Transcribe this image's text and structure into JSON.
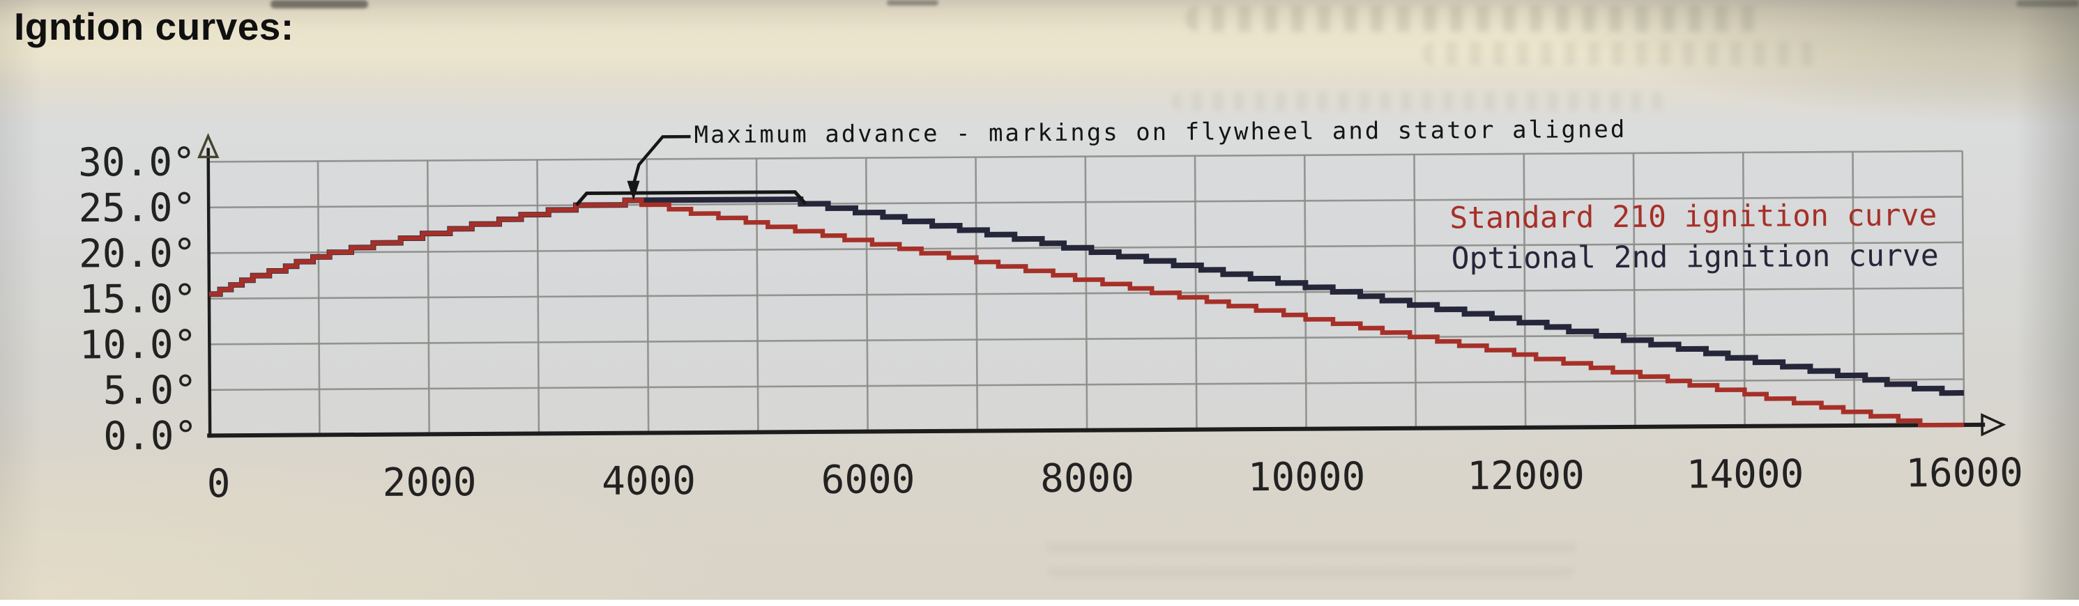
{
  "page": {
    "title": "Igntion curves:"
  },
  "chart_data": {
    "type": "line",
    "title": "Igntion curves",
    "xlabel": "",
    "ylabel": "",
    "xlim": [
      0,
      16000
    ],
    "ylim": [
      0,
      30
    ],
    "grid": true,
    "x_gridline_step": 1000,
    "y_gridline_step": 5,
    "x_ticks": [
      {
        "v": 0,
        "label": "0"
      },
      {
        "v": 2000,
        "label": "2000"
      },
      {
        "v": 4000,
        "label": "4000"
      },
      {
        "v": 6000,
        "label": "6000"
      },
      {
        "v": 8000,
        "label": "8000"
      },
      {
        "v": 10000,
        "label": "10000"
      },
      {
        "v": 12000,
        "label": "12000"
      },
      {
        "v": 14000,
        "label": "14000"
      },
      {
        "v": 16000,
        "label": "16000"
      }
    ],
    "y_ticks": [
      {
        "v": 30,
        "label": "30.0°"
      },
      {
        "v": 25,
        "label": "25.0°"
      },
      {
        "v": 20,
        "label": "20.0°"
      },
      {
        "v": 15,
        "label": "15.0°"
      },
      {
        "v": 10,
        "label": "10.0°"
      },
      {
        "v": 5,
        "label": "5.0°"
      },
      {
        "v": 0,
        "label": "0.0°"
      }
    ],
    "series": [
      {
        "name": "Standard 210 ignition curve",
        "color": "#a63028",
        "points": [
          [
            0,
            15.5
          ],
          [
            500,
            17.7
          ],
          [
            1000,
            19.5
          ],
          [
            1500,
            20.8
          ],
          [
            2000,
            21.9
          ],
          [
            2500,
            23.0
          ],
          [
            3000,
            24.1
          ],
          [
            3500,
            25.1
          ],
          [
            3900,
            25.3
          ],
          [
            15700,
            0
          ],
          [
            16000,
            0
          ]
        ]
      },
      {
        "name": "Optional 2nd ignition curve",
        "color": "#26263a",
        "points": [
          [
            0,
            15.5
          ],
          [
            500,
            17.7
          ],
          [
            1000,
            19.5
          ],
          [
            1500,
            20.8
          ],
          [
            2000,
            21.9
          ],
          [
            2500,
            23.0
          ],
          [
            3000,
            24.1
          ],
          [
            3500,
            25.1
          ],
          [
            3900,
            25.3
          ],
          [
            5350,
            25.3
          ],
          [
            16000,
            3.3
          ]
        ]
      }
    ],
    "annotation": {
      "text": "Maximum advance - markings on flywheel and stator aligned",
      "arrow_rpm": 3870,
      "bracket_rpm": [
        3450,
        5350
      ],
      "bracket_deg": 26.3,
      "max_advance_deg": 25.3
    },
    "legend_position": "inside-top-right",
    "colors": {
      "grid": "#8c8c88",
      "axis": "#1d1d1d",
      "plot_bg": "#d7d9dc",
      "tick_text": "#222222"
    }
  }
}
